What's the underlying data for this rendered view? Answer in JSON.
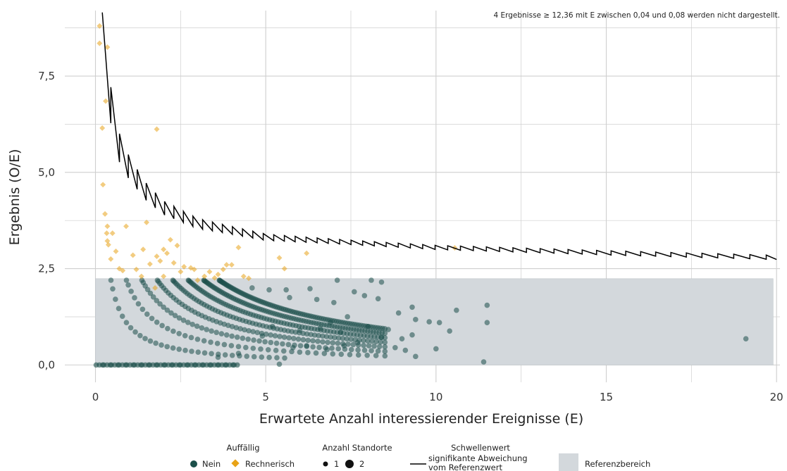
{
  "chart_data": {
    "type": "scatter",
    "title": "",
    "xlabel": "Erwartete Anzahl interessierender Ereignisse (E)",
    "ylabel": "Ergebnis (O/E)",
    "xlim": [
      -0.9,
      20.1
    ],
    "ylim": [
      -0.45,
      9.2
    ],
    "x_ticks": [
      0,
      5,
      10,
      15,
      20
    ],
    "x_tick_labels": [
      "0",
      "5",
      "10",
      "15",
      "20"
    ],
    "y_ticks": [
      0,
      2.5,
      5,
      7.5
    ],
    "y_tick_labels": [
      "0,0",
      "2,5",
      "5,0",
      "7,5"
    ],
    "grid": true,
    "note": "4 Ergebnisse ≥ 12,36 mit E zwischen 0,04 und 0,08 werden nicht dargestellt.",
    "reference_range": {
      "x": [
        0,
        19.9
      ],
      "y": [
        0,
        2.24
      ],
      "color": "#d3d8dc"
    },
    "colors": {
      "nein": "#1b4f4a",
      "rechnerisch": "#e8a317",
      "threshold": "#000000",
      "grid": "#cfcfcf"
    },
    "series": [
      {
        "name": "Nein",
        "color": "#1b4f4a",
        "shape": "circle",
        "points": [
          [
            7.1,
            2.2
          ],
          [
            8.1,
            2.2
          ],
          [
            8.4,
            2.15
          ],
          [
            4.6,
            2.0
          ],
          [
            5.1,
            1.95
          ],
          [
            5.6,
            1.95
          ],
          [
            6.3,
            1.98
          ],
          [
            7.6,
            1.9
          ],
          [
            7.9,
            1.8
          ],
          [
            8.3,
            1.72
          ],
          [
            5.7,
            1.75
          ],
          [
            6.5,
            1.7
          ],
          [
            7.0,
            1.62
          ],
          [
            9.3,
            1.5
          ],
          [
            10.6,
            1.42
          ],
          [
            11.5,
            1.55
          ],
          [
            8.9,
            1.35
          ],
          [
            9.4,
            1.18
          ],
          [
            9.8,
            1.12
          ],
          [
            10.1,
            1.1
          ],
          [
            10.4,
            0.88
          ],
          [
            11.5,
            1.1
          ],
          [
            8.6,
            0.92
          ],
          [
            8.4,
            0.72
          ],
          [
            9.0,
            0.68
          ],
          [
            9.3,
            0.78
          ],
          [
            7.7,
            0.58
          ],
          [
            7.3,
            0.5
          ],
          [
            8.8,
            0.45
          ],
          [
            9.1,
            0.38
          ],
          [
            6.8,
            0.4
          ],
          [
            6.2,
            0.5
          ],
          [
            9.4,
            0.22
          ],
          [
            10.0,
            0.42
          ],
          [
            11.4,
            0.08
          ],
          [
            5.4,
            0.02
          ],
          [
            19.1,
            0.68
          ],
          [
            3.6,
            0.2
          ],
          [
            4.2,
            0.3
          ],
          [
            5.8,
            0.45
          ],
          [
            6.6,
            0.95
          ],
          [
            6.0,
            0.9
          ],
          [
            7.4,
            1.25
          ],
          [
            6.9,
            1.1
          ],
          [
            7.2,
            0.85
          ],
          [
            8.0,
            1.0
          ],
          [
            5.2,
            1.0
          ],
          [
            4.9,
            0.75
          ]
        ]
      },
      {
        "name": "Rechnerisch",
        "color": "#e8a317",
        "shape": "diamond",
        "points": [
          [
            0.12,
            8.8
          ],
          [
            0.12,
            8.35
          ],
          [
            0.35,
            8.25
          ],
          [
            0.3,
            6.85
          ],
          [
            0.2,
            6.15
          ],
          [
            1.8,
            6.12
          ],
          [
            0.22,
            4.68
          ],
          [
            0.28,
            3.92
          ],
          [
            0.35,
            3.6
          ],
          [
            0.33,
            3.42
          ],
          [
            0.35,
            3.22
          ],
          [
            0.38,
            3.12
          ],
          [
            0.5,
            3.42
          ],
          [
            0.6,
            2.95
          ],
          [
            0.7,
            2.5
          ],
          [
            0.8,
            2.45
          ],
          [
            0.9,
            3.6
          ],
          [
            1.1,
            2.85
          ],
          [
            1.2,
            2.48
          ],
          [
            1.35,
            2.3
          ],
          [
            1.5,
            3.7
          ],
          [
            1.6,
            2.62
          ],
          [
            1.8,
            2.82
          ],
          [
            1.9,
            2.7
          ],
          [
            2.0,
            3.0
          ],
          [
            2.1,
            2.9
          ],
          [
            2.2,
            3.25
          ],
          [
            2.3,
            2.65
          ],
          [
            2.4,
            3.1
          ],
          [
            2.5,
            2.42
          ],
          [
            2.6,
            2.55
          ],
          [
            2.8,
            2.52
          ],
          [
            2.9,
            2.48
          ],
          [
            3.0,
            2.2
          ],
          [
            3.2,
            2.3
          ],
          [
            3.35,
            2.42
          ],
          [
            3.5,
            2.26
          ],
          [
            3.6,
            2.35
          ],
          [
            3.75,
            2.48
          ],
          [
            3.85,
            2.6
          ],
          [
            4.0,
            2.6
          ],
          [
            4.2,
            3.05
          ],
          [
            4.35,
            2.3
          ],
          [
            4.5,
            2.25
          ],
          [
            5.4,
            2.78
          ],
          [
            5.55,
            2.5
          ],
          [
            6.2,
            2.9
          ],
          [
            10.55,
            3.04
          ],
          [
            1.75,
            2.0
          ],
          [
            1.4,
            3.0
          ],
          [
            0.45,
            2.75
          ],
          [
            2.0,
            2.3
          ]
        ]
      }
    ],
    "threshold_series": {
      "name": "Schwellenwert signifikante Abweichung vom Referenzwert",
      "color": "#000000",
      "decay_points": [
        [
          0.2,
          9.2
        ],
        [
          0.45,
          6.7
        ],
        [
          0.7,
          5.6
        ],
        [
          1.0,
          5.05
        ],
        [
          1.5,
          4.45
        ],
        [
          2.0,
          4.05
        ],
        [
          3.0,
          3.65
        ],
        [
          5.0,
          3.3
        ],
        [
          10.0,
          3.04
        ],
        [
          15.0,
          2.9
        ],
        [
          20.0,
          2.78
        ]
      ]
    },
    "legend": {
      "position": "bottom",
      "groups": [
        {
          "title": "Auffällig",
          "items": [
            "Nein",
            "Rechnerisch"
          ]
        },
        {
          "title": "Anzahl Standorte",
          "items": [
            "1",
            "2"
          ]
        },
        {
          "title": "Schwellenwert",
          "items": [
            "signifikante Abweichung",
            "vom Referenzwert"
          ]
        },
        {
          "title": "",
          "items": [
            "Referenzbereich"
          ]
        }
      ]
    }
  }
}
